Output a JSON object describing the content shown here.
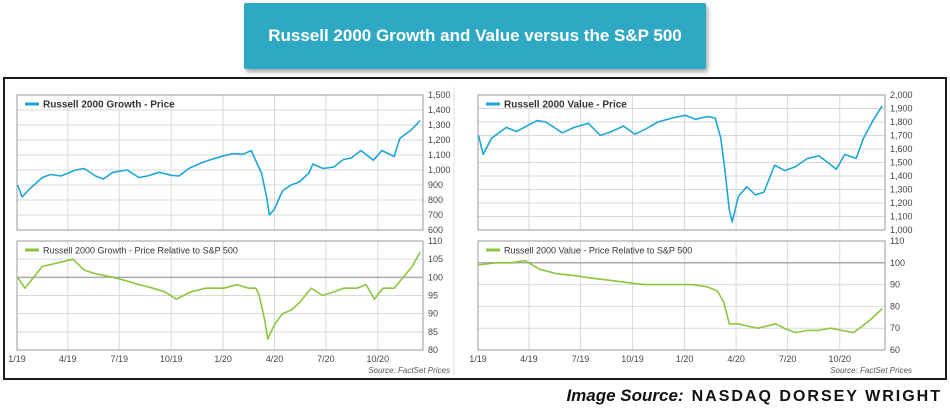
{
  "title": "Russell 2000 Growth and Value versus the S&P 500",
  "image_source": {
    "lead": "Image Source:",
    "brand": "NASDAQ DORSEY WRIGHT"
  },
  "colors": {
    "price": "#1ea6d8",
    "relative": "#8cc63f",
    "axis": "#999999",
    "grid": "#d9d9d9",
    "refline": "#aaaaaa"
  },
  "chart_data": [
    {
      "type": "line",
      "source": "Source: FactSet Prices",
      "x_ticks": [
        "1/19",
        "4/19",
        "7/19",
        "10/19",
        "1/20",
        "4/20",
        "7/20",
        "10/20"
      ],
      "top": {
        "legend": "Russell 2000 Growth - Price",
        "y_ticks": [
          "600",
          "700",
          "800",
          "900",
          "1,000",
          "1,100",
          "1,200",
          "1,300",
          "1,400",
          "1,500"
        ],
        "ylim": [
          600,
          1500
        ],
        "series": [
          {
            "name": "Russell 2000 Growth - Price",
            "x": [
              "2019-01-02",
              "2019-01-10",
              "2019-01-25",
              "2019-02-15",
              "2019-03-01",
              "2019-03-20",
              "2019-04-15",
              "2019-04-30",
              "2019-05-20",
              "2019-06-03",
              "2019-06-20",
              "2019-07-15",
              "2019-08-05",
              "2019-08-20",
              "2019-09-10",
              "2019-10-01",
              "2019-10-15",
              "2019-11-01",
              "2019-11-25",
              "2019-12-15",
              "2020-01-02",
              "2020-01-20",
              "2020-02-05",
              "2020-02-20",
              "2020-02-28",
              "2020-03-09",
              "2020-03-18",
              "2020-03-23",
              "2020-04-01",
              "2020-04-15",
              "2020-04-30",
              "2020-05-15",
              "2020-06-01",
              "2020-06-08",
              "2020-06-26",
              "2020-07-15",
              "2020-08-01",
              "2020-08-15",
              "2020-09-01",
              "2020-09-23",
              "2020-10-08",
              "2020-10-30",
              "2020-11-09",
              "2020-11-30",
              "2020-12-15"
            ],
            "y": [
              900,
              820,
              880,
              950,
              970,
              960,
              1000,
              1010,
              960,
              940,
              985,
              1000,
              950,
              960,
              985,
              965,
              960,
              1010,
              1050,
              1075,
              1095,
              1110,
              1105,
              1130,
              1060,
              980,
              820,
              700,
              740,
              860,
              900,
              920,
              980,
              1040,
              1010,
              1020,
              1070,
              1080,
              1130,
              1065,
              1130,
              1090,
              1210,
              1270,
              1330
            ]
          }
        ]
      },
      "bottom": {
        "legend": "Russell 2000 Growth - Price Relative to S&P 500",
        "y_ticks": [
          "80",
          "85",
          "90",
          "95",
          "100",
          "105",
          "110"
        ],
        "ylim": [
          80,
          110
        ],
        "reference_line": 100,
        "series": [
          {
            "name": "Russell 2000 Growth - Price Relative to S&P 500",
            "x": [
              "2019-01-02",
              "2019-01-15",
              "2019-02-15",
              "2019-03-15",
              "2019-04-10",
              "2019-04-30",
              "2019-05-20",
              "2019-06-20",
              "2019-07-15",
              "2019-08-05",
              "2019-08-30",
              "2019-09-20",
              "2019-10-10",
              "2019-11-05",
              "2019-12-01",
              "2020-01-02",
              "2020-01-25",
              "2020-02-15",
              "2020-02-28",
              "2020-03-05",
              "2020-03-15",
              "2020-03-20",
              "2020-04-01",
              "2020-04-15",
              "2020-05-01",
              "2020-05-15",
              "2020-06-05",
              "2020-06-25",
              "2020-07-15",
              "2020-08-01",
              "2020-08-25",
              "2020-09-10",
              "2020-09-25",
              "2020-10-10",
              "2020-10-30",
              "2020-11-15",
              "2020-12-01",
              "2020-12-15"
            ],
            "y": [
              100,
              97,
              103,
              104,
              105,
              102,
              101,
              100,
              99,
              98,
              97,
              96,
              94,
              96,
              97,
              97,
              98,
              97,
              97,
              95,
              88,
              83,
              87,
              90,
              91,
              93,
              97,
              95,
              96,
              97,
              97,
              98,
              94,
              97,
              97,
              100,
              103,
              107
            ]
          }
        ]
      }
    },
    {
      "type": "line",
      "source": "Source: FactSet Prices",
      "x_ticks": [
        "1/19",
        "4/19",
        "7/19",
        "10/19",
        "1/20",
        "4/20",
        "7/20",
        "10/20"
      ],
      "top": {
        "legend": "Russell 2000 Value - Price",
        "y_ticks": [
          "1,000",
          "1,100",
          "1,200",
          "1,300",
          "1,400",
          "1,500",
          "1,600",
          "1,700",
          "1,800",
          "1,900",
          "2,000"
        ],
        "ylim": [
          1000,
          2000
        ],
        "series": [
          {
            "name": "Russell 2000 Value - Price",
            "x": [
              "2019-01-02",
              "2019-01-10",
              "2019-01-25",
              "2019-02-20",
              "2019-03-10",
              "2019-04-15",
              "2019-05-01",
              "2019-05-30",
              "2019-06-20",
              "2019-07-15",
              "2019-08-05",
              "2019-08-25",
              "2019-09-15",
              "2019-10-05",
              "2019-10-25",
              "2019-11-15",
              "2019-12-10",
              "2020-01-02",
              "2020-01-20",
              "2020-02-10",
              "2020-02-24",
              "2020-03-05",
              "2020-03-12",
              "2020-03-20",
              "2020-03-25",
              "2020-04-05",
              "2020-04-20",
              "2020-05-05",
              "2020-05-20",
              "2020-06-08",
              "2020-06-26",
              "2020-07-15",
              "2020-08-05",
              "2020-08-25",
              "2020-09-10",
              "2020-09-25",
              "2020-10-10",
              "2020-10-30",
              "2020-11-12",
              "2020-11-30",
              "2020-12-15"
            ],
            "y": [
              1700,
              1560,
              1680,
              1760,
              1730,
              1810,
              1800,
              1720,
              1760,
              1790,
              1700,
              1730,
              1770,
              1710,
              1750,
              1800,
              1830,
              1850,
              1820,
              1840,
              1830,
              1680,
              1450,
              1150,
              1060,
              1250,
              1320,
              1260,
              1280,
              1480,
              1440,
              1470,
              1530,
              1550,
              1500,
              1450,
              1560,
              1530,
              1680,
              1820,
              1920
            ]
          }
        ]
      },
      "bottom": {
        "legend": "Russell 2000 Value - Price Relative to S&P 500",
        "y_ticks": [
          "60",
          "70",
          "80",
          "90",
          "100",
          "110"
        ],
        "ylim": [
          60,
          110
        ],
        "reference_line": 100,
        "series": [
          {
            "name": "Russell 2000 Value - Price Relative to S&P 500",
            "x": [
              "2019-01-02",
              "2019-02-01",
              "2019-03-01",
              "2019-03-25",
              "2019-04-20",
              "2019-05-20",
              "2019-06-25",
              "2019-07-20",
              "2019-08-20",
              "2019-09-20",
              "2019-10-20",
              "2019-11-20",
              "2019-12-20",
              "2020-01-15",
              "2020-02-10",
              "2020-02-28",
              "2020-03-10",
              "2020-03-20",
              "2020-04-05",
              "2020-04-20",
              "2020-05-10",
              "2020-05-25",
              "2020-06-10",
              "2020-06-25",
              "2020-07-15",
              "2020-08-05",
              "2020-08-25",
              "2020-09-15",
              "2020-10-05",
              "2020-10-25",
              "2020-11-10",
              "2020-11-25",
              "2020-12-15"
            ],
            "y": [
              99,
              100,
              100,
              101,
              97,
              95,
              94,
              93,
              92,
              91,
              90,
              90,
              90,
              90,
              89,
              87,
              82,
              72,
              72,
              71,
              70,
              71,
              72,
              70,
              68,
              69,
              69,
              70,
              69,
              68,
              71,
              74,
              79
            ]
          }
        ]
      }
    }
  ]
}
